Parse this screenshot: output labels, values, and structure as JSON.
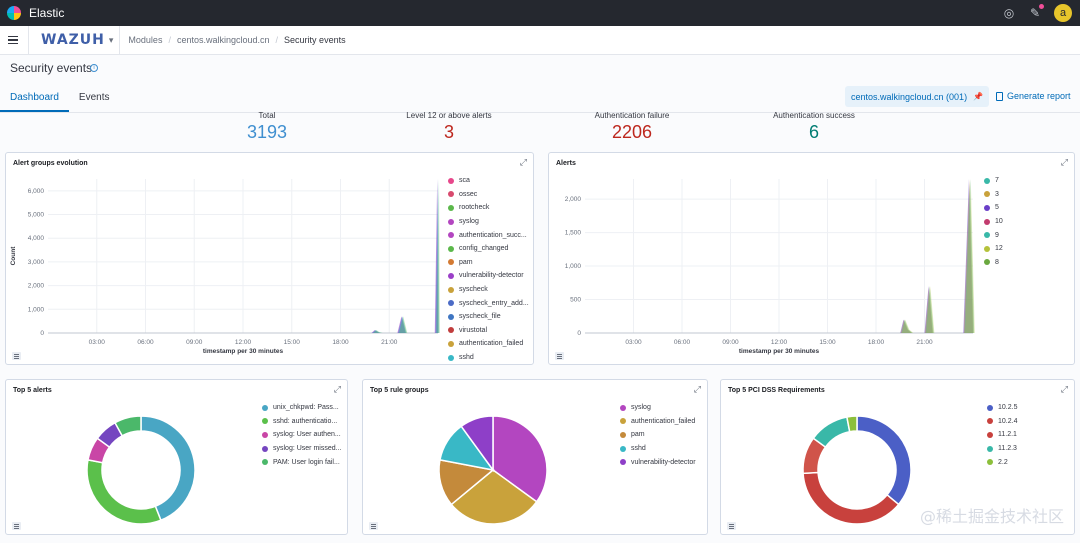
{
  "topbar": {
    "title": "Elastic",
    "avatar_letter": "a"
  },
  "navbar": {
    "brand": "WAZUH",
    "crumbs": [
      "Modules",
      "centos.walkingcloud.cn",
      "Security events"
    ]
  },
  "page": {
    "title": "Security events"
  },
  "tabs": [
    "Dashboard",
    "Events"
  ],
  "agent": {
    "label": "centos.walkingcloud.cn (001)"
  },
  "report": {
    "label": "Generate report"
  },
  "stats": [
    {
      "label": "Total",
      "value": "3193",
      "color": "#3f8fd0"
    },
    {
      "label": "Level 12 or above alerts",
      "value": "3",
      "color": "#bd271e"
    },
    {
      "label": "Authentication failure",
      "value": "2206",
      "color": "#bd271e"
    },
    {
      "label": "Authentication success",
      "value": "6",
      "color": "#017d73"
    }
  ],
  "panels": {
    "groups_evolution": {
      "title": "Alert groups evolution",
      "ylabel": "Count",
      "xlabel": "timestamp per 30 minutes",
      "legend": [
        {
          "name": "sca",
          "color": "#e7478b"
        },
        {
          "name": "ossec",
          "color": "#d84a6e"
        },
        {
          "name": "rootcheck",
          "color": "#5bb84b"
        },
        {
          "name": "syslog",
          "color": "#b346c0"
        },
        {
          "name": "authentication_succ...",
          "color": "#b346c0"
        },
        {
          "name": "config_changed",
          "color": "#5bb84b"
        },
        {
          "name": "pam",
          "color": "#d37a33"
        },
        {
          "name": "vulnerability-detector",
          "color": "#9b3fc8"
        },
        {
          "name": "syscheck",
          "color": "#c9a23b"
        },
        {
          "name": "syscheck_entry_add...",
          "color": "#4b6bc6"
        },
        {
          "name": "syscheck_file",
          "color": "#3f76c2"
        },
        {
          "name": "virustotal",
          "color": "#c13d3d"
        },
        {
          "name": "authentication_failed",
          "color": "#c9a23b"
        },
        {
          "name": "sshd",
          "color": "#39b8c6"
        }
      ]
    },
    "alerts": {
      "title": "Alerts",
      "legend": [
        {
          "name": "7",
          "color": "#39b8a8"
        },
        {
          "name": "3",
          "color": "#c9a23b"
        },
        {
          "name": "5",
          "color": "#6a3fc8"
        },
        {
          "name": "10",
          "color": "#c23b6e"
        },
        {
          "name": "9",
          "color": "#39b8a8"
        },
        {
          "name": "12",
          "color": "#b5c23b"
        },
        {
          "name": "8",
          "color": "#6aa83f"
        }
      ]
    },
    "top5_alerts": {
      "title": "Top 5 alerts",
      "legend": [
        {
          "name": "unix_chkpwd: Pass...",
          "color": "#49a6c4"
        },
        {
          "name": "sshd: authenticatio...",
          "color": "#5bc04b"
        },
        {
          "name": "syslog: User authen...",
          "color": "#c946a6"
        },
        {
          "name": "syslog: User missed...",
          "color": "#7546c0"
        },
        {
          "name": "PAM: User login fail...",
          "color": "#4bb86a"
        }
      ]
    },
    "top5_rule_groups": {
      "title": "Top 5 rule groups",
      "legend": [
        {
          "name": "syslog",
          "color": "#b346c0"
        },
        {
          "name": "authentication_failed",
          "color": "#c9a23b"
        },
        {
          "name": "pam",
          "color": "#c48a3b"
        },
        {
          "name": "sshd",
          "color": "#39b8c6"
        },
        {
          "name": "vulnerability-detector",
          "color": "#8e3fc8"
        }
      ]
    },
    "top5_pci": {
      "title": "Top 5 PCI DSS Requirements",
      "legend": [
        {
          "name": "10.2.5",
          "color": "#4b5fc6"
        },
        {
          "name": "10.2.4",
          "color": "#c8413d"
        },
        {
          "name": "11.2.1",
          "color": "#c8413d"
        },
        {
          "name": "11.2.3",
          "color": "#39b8a8"
        },
        {
          "name": "2.2",
          "color": "#8cbf3b"
        }
      ]
    }
  },
  "chart_data": [
    {
      "type": "area",
      "title": "Alert groups evolution",
      "xlabel": "timestamp per 30 minutes",
      "ylabel": "Count",
      "x_ticks": [
        "03:00",
        "06:00",
        "09:00",
        "12:00",
        "15:00",
        "18:00",
        "21:00"
      ],
      "y_ticks": [
        0,
        1000,
        2000,
        3000,
        4000,
        5000,
        6000
      ],
      "y_tick_labels": [
        "0",
        "1,000",
        "2,000",
        "3,000",
        "4,000",
        "5,000",
        "6,000"
      ],
      "ylim": [
        0,
        6500
      ],
      "x_hours": [
        19.9,
        20.1,
        20.3,
        20.5,
        21.5,
        21.75,
        22.0,
        22.5,
        23.8,
        23.95,
        24.0
      ],
      "values": [
        0,
        120,
        30,
        0,
        0,
        700,
        0,
        0,
        0,
        6500,
        0
      ]
    },
    {
      "type": "area",
      "title": "Alerts",
      "xlabel": "timestamp per 30 minutes",
      "ylabel": "",
      "x_ticks": [
        "03:00",
        "06:00",
        "09:00",
        "12:00",
        "15:00",
        "18:00",
        "21:00"
      ],
      "y_ticks": [
        0,
        500,
        1000,
        1500,
        2000
      ],
      "y_tick_labels": [
        "0",
        "500",
        "1,000",
        "1,500",
        "2,000"
      ],
      "ylim": [
        0,
        2300
      ],
      "x_hours": [
        19.5,
        19.7,
        19.95,
        20.2,
        20.6,
        21.0,
        21.25,
        21.5,
        23.4,
        23.75,
        24.0
      ],
      "values": [
        0,
        200,
        50,
        0,
        0,
        0,
        700,
        0,
        0,
        2300,
        0
      ]
    },
    {
      "type": "pie",
      "title": "Top 5 alerts",
      "donut": true,
      "labels": [
        "unix_chkpwd: Pass...",
        "sshd: authenticatio...",
        "syslog: User authen...",
        "syslog: User missed...",
        "PAM: User login fail..."
      ],
      "values": [
        44,
        34,
        7,
        7,
        8
      ]
    },
    {
      "type": "pie",
      "title": "Top 5 rule groups",
      "donut": false,
      "labels": [
        "syslog",
        "authentication_failed",
        "pam",
        "sshd",
        "vulnerability-detector"
      ],
      "values": [
        35,
        29,
        14,
        12,
        10
      ]
    },
    {
      "type": "pie",
      "title": "Top 5 PCI DSS Requirements",
      "donut": true,
      "labels": [
        "10.2.5",
        "10.2.4",
        "11.2.1",
        "11.2.3",
        "2.2"
      ],
      "values": [
        36,
        38,
        11,
        12,
        3
      ]
    }
  ],
  "watermark": "@稀土掘金技术社区"
}
